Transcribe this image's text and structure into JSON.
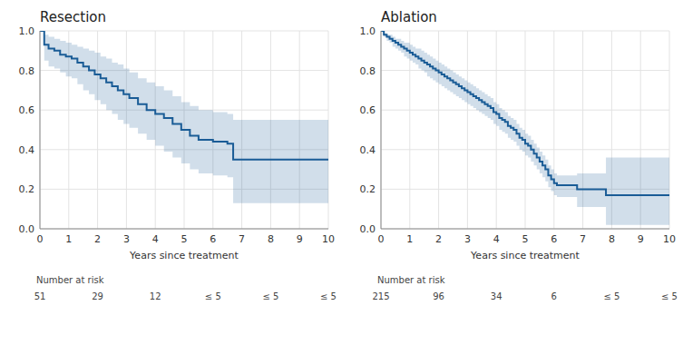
{
  "chart_data": [
    {
      "type": "step",
      "title": "Resection",
      "xlabel": "Years since treatment",
      "x": [
        0,
        0.15,
        0.3,
        0.5,
        0.7,
        0.9,
        1.1,
        1.3,
        1.5,
        1.7,
        1.9,
        2.1,
        2.3,
        2.5,
        2.7,
        2.9,
        3.1,
        3.4,
        3.7,
        4.0,
        4.3,
        4.6,
        4.9,
        5.2,
        5.5,
        6.0,
        6.5,
        6.7,
        7.0,
        10.0
      ],
      "values": [
        1.0,
        0.93,
        0.91,
        0.9,
        0.88,
        0.87,
        0.86,
        0.84,
        0.82,
        0.8,
        0.78,
        0.76,
        0.74,
        0.72,
        0.7,
        0.68,
        0.66,
        0.63,
        0.6,
        0.58,
        0.56,
        0.53,
        0.5,
        0.47,
        0.45,
        0.44,
        0.43,
        0.35,
        0.35,
        0.35
      ],
      "ci_upper": [
        1.0,
        0.98,
        0.97,
        0.96,
        0.95,
        0.94,
        0.93,
        0.92,
        0.91,
        0.9,
        0.89,
        0.87,
        0.86,
        0.84,
        0.83,
        0.81,
        0.79,
        0.76,
        0.74,
        0.72,
        0.7,
        0.67,
        0.64,
        0.62,
        0.6,
        0.59,
        0.58,
        0.55,
        0.55,
        0.55
      ],
      "ci_lower": [
        1.0,
        0.85,
        0.82,
        0.81,
        0.79,
        0.77,
        0.76,
        0.73,
        0.7,
        0.68,
        0.65,
        0.63,
        0.6,
        0.58,
        0.55,
        0.53,
        0.51,
        0.48,
        0.45,
        0.42,
        0.39,
        0.36,
        0.33,
        0.3,
        0.28,
        0.27,
        0.26,
        0.13,
        0.13,
        0.13
      ],
      "color": "#1a5c96",
      "xlim": [
        0,
        10
      ],
      "xticks": [
        0,
        1,
        2,
        3,
        4,
        5,
        6,
        7,
        8,
        9,
        10
      ],
      "ylim": [
        0.0,
        1.0
      ],
      "yticks": [
        {
          "value": 0.0,
          "label": "0.0"
        },
        {
          "value": 0.2,
          "label": "0.2"
        },
        {
          "value": 0.4,
          "label": "0.4"
        },
        {
          "value": 0.6,
          "label": "0.6"
        },
        {
          "value": 0.8,
          "label": "0.8"
        },
        {
          "value": 1.0,
          "label": "1.0"
        }
      ],
      "grid": true,
      "number_at_risk_label": "Number at risk",
      "number_at_risk_labels": [
        "51",
        "29",
        "12",
        "≤ 5",
        "≤ 5",
        "≤ 5"
      ],
      "number_at_risk_times": [
        0,
        2,
        4,
        6,
        8,
        10
      ]
    },
    {
      "type": "step",
      "title": "Ablation",
      "xlabel": "Years since treatment",
      "x": [
        0,
        0.1,
        0.2,
        0.3,
        0.4,
        0.5,
        0.6,
        0.7,
        0.8,
        0.9,
        1.0,
        1.1,
        1.2,
        1.3,
        1.4,
        1.5,
        1.6,
        1.7,
        1.8,
        1.9,
        2.0,
        2.1,
        2.2,
        2.3,
        2.4,
        2.5,
        2.6,
        2.7,
        2.8,
        2.9,
        3.0,
        3.1,
        3.2,
        3.3,
        3.4,
        3.5,
        3.6,
        3.7,
        3.8,
        3.9,
        4.0,
        4.1,
        4.2,
        4.3,
        4.4,
        4.5,
        4.6,
        4.7,
        4.8,
        4.9,
        5.0,
        5.1,
        5.2,
        5.3,
        5.4,
        5.5,
        5.6,
        5.7,
        5.8,
        5.9,
        6.0,
        6.1,
        6.2,
        6.3,
        6.5,
        6.8,
        7.8,
        8.0,
        10.0
      ],
      "values": [
        1.0,
        0.98,
        0.97,
        0.96,
        0.95,
        0.94,
        0.93,
        0.92,
        0.91,
        0.9,
        0.89,
        0.88,
        0.87,
        0.86,
        0.85,
        0.84,
        0.83,
        0.82,
        0.81,
        0.8,
        0.79,
        0.78,
        0.77,
        0.76,
        0.75,
        0.74,
        0.73,
        0.72,
        0.71,
        0.7,
        0.69,
        0.68,
        0.67,
        0.66,
        0.65,
        0.64,
        0.63,
        0.62,
        0.61,
        0.59,
        0.58,
        0.56,
        0.55,
        0.54,
        0.52,
        0.51,
        0.5,
        0.48,
        0.46,
        0.45,
        0.43,
        0.42,
        0.4,
        0.38,
        0.36,
        0.34,
        0.32,
        0.3,
        0.27,
        0.25,
        0.23,
        0.22,
        0.22,
        0.22,
        0.22,
        0.2,
        0.17,
        0.17,
        0.17
      ],
      "ci_upper": [
        1.0,
        0.99,
        0.98,
        0.98,
        0.97,
        0.96,
        0.96,
        0.95,
        0.94,
        0.94,
        0.93,
        0.92,
        0.91,
        0.91,
        0.9,
        0.89,
        0.88,
        0.87,
        0.86,
        0.85,
        0.84,
        0.83,
        0.82,
        0.81,
        0.8,
        0.79,
        0.78,
        0.77,
        0.76,
        0.75,
        0.74,
        0.73,
        0.72,
        0.71,
        0.7,
        0.69,
        0.68,
        0.67,
        0.66,
        0.64,
        0.63,
        0.61,
        0.6,
        0.59,
        0.57,
        0.56,
        0.55,
        0.53,
        0.51,
        0.5,
        0.48,
        0.47,
        0.45,
        0.43,
        0.41,
        0.39,
        0.37,
        0.35,
        0.32,
        0.3,
        0.28,
        0.27,
        0.27,
        0.27,
        0.27,
        0.28,
        0.36,
        0.36,
        0.36
      ],
      "ci_lower": [
        1.0,
        0.97,
        0.95,
        0.94,
        0.92,
        0.91,
        0.9,
        0.89,
        0.87,
        0.86,
        0.85,
        0.84,
        0.83,
        0.81,
        0.8,
        0.79,
        0.77,
        0.76,
        0.75,
        0.74,
        0.73,
        0.72,
        0.71,
        0.7,
        0.69,
        0.68,
        0.67,
        0.66,
        0.65,
        0.64,
        0.63,
        0.62,
        0.61,
        0.6,
        0.59,
        0.58,
        0.57,
        0.56,
        0.55,
        0.53,
        0.52,
        0.5,
        0.49,
        0.48,
        0.46,
        0.45,
        0.44,
        0.42,
        0.4,
        0.39,
        0.37,
        0.36,
        0.34,
        0.32,
        0.3,
        0.28,
        0.26,
        0.24,
        0.21,
        0.19,
        0.17,
        0.16,
        0.16,
        0.16,
        0.16,
        0.11,
        0.02,
        0.02,
        0.02
      ],
      "color": "#1a5c96",
      "xlim": [
        0,
        10
      ],
      "xticks": [
        0,
        1,
        2,
        3,
        4,
        5,
        6,
        7,
        8,
        9,
        10
      ],
      "ylim": [
        0.0,
        1.0
      ],
      "yticks": [
        {
          "value": 0.0,
          "label": "0.0"
        },
        {
          "value": 0.2,
          "label": "0.2"
        },
        {
          "value": 0.4,
          "label": "0.4"
        },
        {
          "value": 0.6,
          "label": "0.6"
        },
        {
          "value": 0.8,
          "label": "0.8"
        },
        {
          "value": 1.0,
          "label": "1.0"
        }
      ],
      "grid": true,
      "number_at_risk_label": "Number at risk",
      "number_at_risk_labels": [
        "215",
        "96",
        "34",
        "6",
        "≤ 5",
        "≤ 5"
      ],
      "number_at_risk_times": [
        0,
        2,
        4,
        6,
        8,
        10
      ]
    }
  ]
}
